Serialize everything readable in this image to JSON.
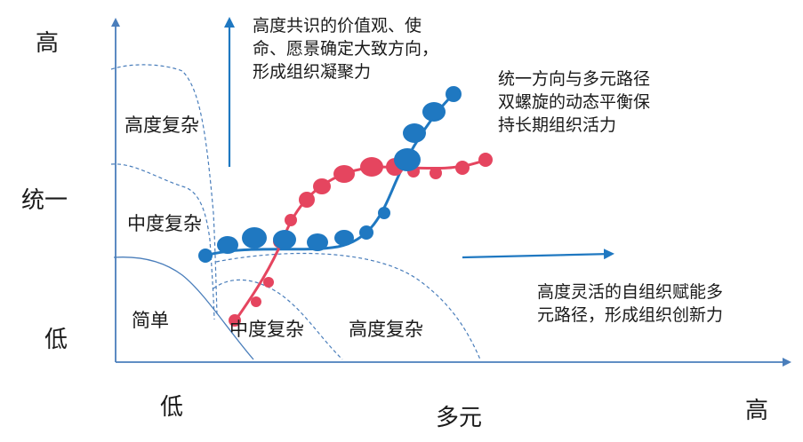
{
  "axes": {
    "y_title": "统一",
    "y_high": "高",
    "y_low": "低",
    "x_title": "多元",
    "x_low": "低",
    "x_high": "高"
  },
  "regions": {
    "upper_high_complex": "高度复杂",
    "upper_mid_complex": "中度复杂",
    "simple": "简单",
    "lower_mid_complex": "中度复杂",
    "lower_high_complex": "高度复杂"
  },
  "notes": {
    "unity": "高度共识的价值观、使\n命、愿景确定大致方向，\n形成组织凝聚力",
    "helix": "统一方向与多元路径\n双螺旋的动态平衡保\n持长期组织活力",
    "diversity": "高度灵活的自组织赋能多\n元路径，形成组织创新力"
  },
  "colors": {
    "axis": "#4a7ebb",
    "blue_helix": "#1f78c1",
    "red_helix": "#e5455f",
    "text": "#1a1a1a"
  }
}
